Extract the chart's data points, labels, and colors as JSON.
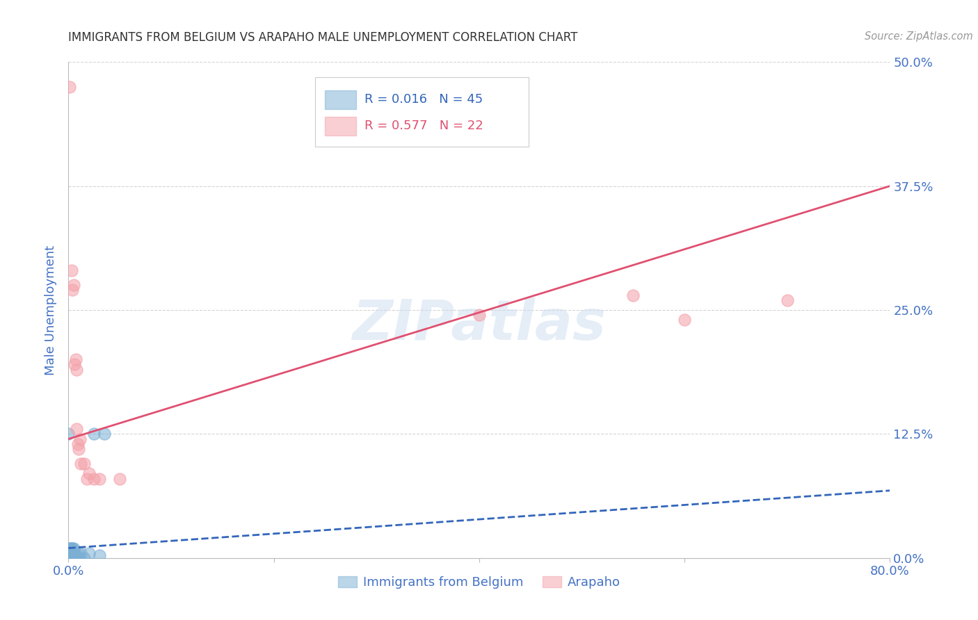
{
  "title": "IMMIGRANTS FROM BELGIUM VS ARAPAHO MALE UNEMPLOYMENT CORRELATION CHART",
  "source": "Source: ZipAtlas.com",
  "ylabel": "Male Unemployment",
  "watermark": "ZIPatlas",
  "xlim": [
    0.0,
    0.8
  ],
  "ylim": [
    0.0,
    0.5
  ],
  "xticks": [
    0.0,
    0.2,
    0.4,
    0.6,
    0.8
  ],
  "xticklabels": [
    "0.0%",
    "",
    "",
    "",
    "80.0%"
  ],
  "ytick_labels": [
    "0.0%",
    "12.5%",
    "25.0%",
    "37.5%",
    "50.0%"
  ],
  "ytick_values": [
    0.0,
    0.125,
    0.25,
    0.375,
    0.5
  ],
  "legend_label1": "Immigrants from Belgium",
  "legend_label2": "Arapaho",
  "legend_text1": "R = 0.016   N = 45",
  "legend_text2": "R = 0.577   N = 22",
  "belgium_color": "#7bafd4",
  "arapaho_color": "#f4a0a8",
  "belgium_line_color": "#3366bb",
  "arapaho_line_color": "#e05070",
  "belgium_points": [
    [
      0.0,
      0.0
    ],
    [
      0.0,
      0.0
    ],
    [
      0.0,
      0.0
    ],
    [
      0.0,
      0.0
    ],
    [
      0.0,
      0.0
    ],
    [
      0.0,
      0.0
    ],
    [
      0.0,
      0.0
    ],
    [
      0.0,
      0.002
    ],
    [
      0.001,
      0.0
    ],
    [
      0.001,
      0.0
    ],
    [
      0.001,
      0.0
    ],
    [
      0.001,
      0.003
    ],
    [
      0.001,
      0.005
    ],
    [
      0.001,
      0.007
    ],
    [
      0.001,
      0.008
    ],
    [
      0.001,
      0.01
    ],
    [
      0.002,
      0.0
    ],
    [
      0.002,
      0.003
    ],
    [
      0.002,
      0.005
    ],
    [
      0.002,
      0.007
    ],
    [
      0.002,
      0.01
    ],
    [
      0.003,
      0.0
    ],
    [
      0.003,
      0.003
    ],
    [
      0.003,
      0.007
    ],
    [
      0.003,
      0.01
    ],
    [
      0.004,
      0.0
    ],
    [
      0.004,
      0.005
    ],
    [
      0.004,
      0.01
    ],
    [
      0.005,
      0.0
    ],
    [
      0.005,
      0.003
    ],
    [
      0.005,
      0.007
    ],
    [
      0.005,
      0.01
    ],
    [
      0.006,
      0.0
    ],
    [
      0.006,
      0.005
    ],
    [
      0.007,
      0.003
    ],
    [
      0.008,
      0.0
    ],
    [
      0.009,
      0.005
    ],
    [
      0.01,
      0.0
    ],
    [
      0.012,
      0.005
    ],
    [
      0.015,
      0.0
    ],
    [
      0.02,
      0.005
    ],
    [
      0.025,
      0.125
    ],
    [
      0.03,
      0.003
    ],
    [
      0.035,
      0.125
    ],
    [
      0.0,
      0.125
    ]
  ],
  "arapaho_points": [
    [
      0.001,
      0.475
    ],
    [
      0.003,
      0.29
    ],
    [
      0.004,
      0.27
    ],
    [
      0.005,
      0.275
    ],
    [
      0.006,
      0.195
    ],
    [
      0.007,
      0.2
    ],
    [
      0.008,
      0.19
    ],
    [
      0.008,
      0.13
    ],
    [
      0.009,
      0.115
    ],
    [
      0.01,
      0.11
    ],
    [
      0.011,
      0.12
    ],
    [
      0.012,
      0.095
    ],
    [
      0.015,
      0.095
    ],
    [
      0.018,
      0.08
    ],
    [
      0.02,
      0.085
    ],
    [
      0.025,
      0.08
    ],
    [
      0.03,
      0.08
    ],
    [
      0.05,
      0.08
    ],
    [
      0.4,
      0.245
    ],
    [
      0.55,
      0.265
    ],
    [
      0.6,
      0.24
    ],
    [
      0.7,
      0.26
    ]
  ],
  "belgium_line_x": [
    0.0,
    0.8
  ],
  "belgium_line_y": [
    0.01,
    0.068
  ],
  "arapaho_line_x": [
    0.0,
    0.8
  ],
  "arapaho_line_y": [
    0.12,
    0.375
  ],
  "title_color": "#333333",
  "tick_label_color": "#4472c4",
  "grid_color": "#d0d0d0",
  "background_color": "#ffffff"
}
